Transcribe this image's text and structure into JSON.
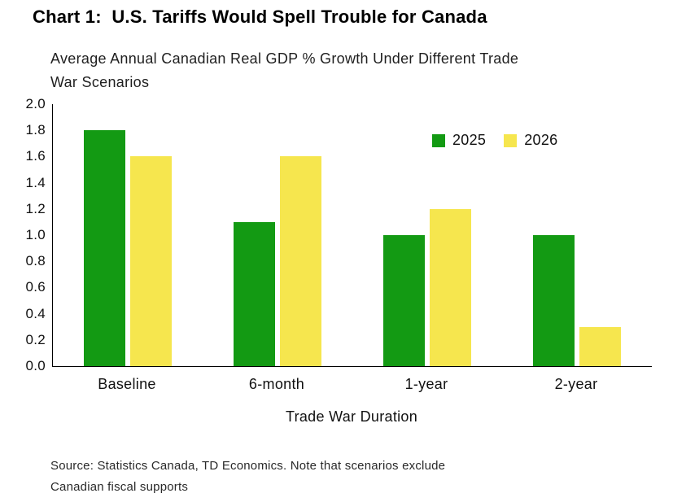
{
  "chart_data": {
    "type": "bar",
    "title": "Chart 1:  U.S. Tariffs Would Spell Trouble for Canada",
    "subtitle": "Average Annual Canadian Real GDP % Growth Under Different Trade\nWar Scenarios",
    "categories": [
      "Baseline",
      "6-month",
      "1-year",
      "2-year"
    ],
    "series": [
      {
        "name": "2025",
        "color": "#139a13",
        "values": [
          1.8,
          1.1,
          1.0,
          1.0
        ]
      },
      {
        "name": "2026",
        "color": "#f6e64e",
        "values": [
          1.6,
          1.6,
          1.2,
          0.3
        ]
      }
    ],
    "xlabel": "Trade War Duration",
    "ylabel": "",
    "ylim": [
      0,
      2.0
    ],
    "yticks": [
      "0.0",
      "0.2",
      "0.4",
      "0.6",
      "0.8",
      "1.0",
      "1.2",
      "1.4",
      "1.6",
      "1.8",
      "2.0"
    ],
    "grid": false,
    "legend_position": "inside-top-right",
    "axis_color": "#000000"
  },
  "source_note": "Source: Statistics Canada, TD Economics. Note that scenarios exclude\nCanadian fiscal supports"
}
